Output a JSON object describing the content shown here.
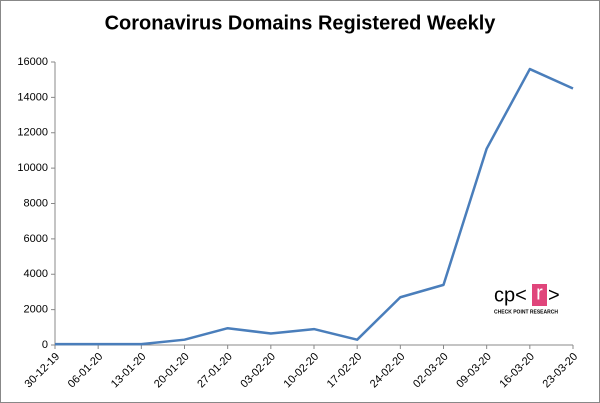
{
  "chart_data": {
    "type": "line",
    "title": "Coronavirus Domains Registered Weekly",
    "categories": [
      "30-12-19",
      "06-01-20",
      "13-01-20",
      "20-01-20",
      "27-01-20",
      "03-02-20",
      "10-02-20",
      "17-02-20",
      "24-02-20",
      "02-03-20",
      "09-03-20",
      "16-03-20",
      "23-03-20"
    ],
    "series": [
      {
        "name": "Domains",
        "color": "#4a7ebb",
        "values": [
          50,
          50,
          50,
          300,
          950,
          650,
          900,
          300,
          2700,
          3400,
          11100,
          15600,
          14500
        ]
      }
    ],
    "ylim": [
      0,
      16000
    ],
    "yticks": [
      0,
      2000,
      4000,
      6000,
      8000,
      10000,
      12000,
      14000,
      16000
    ],
    "grid": false,
    "legend": false
  },
  "logo": {
    "left": "cp<",
    "mid": "r",
    "right": ">",
    "caption": "CHECK POINT RESEARCH"
  }
}
